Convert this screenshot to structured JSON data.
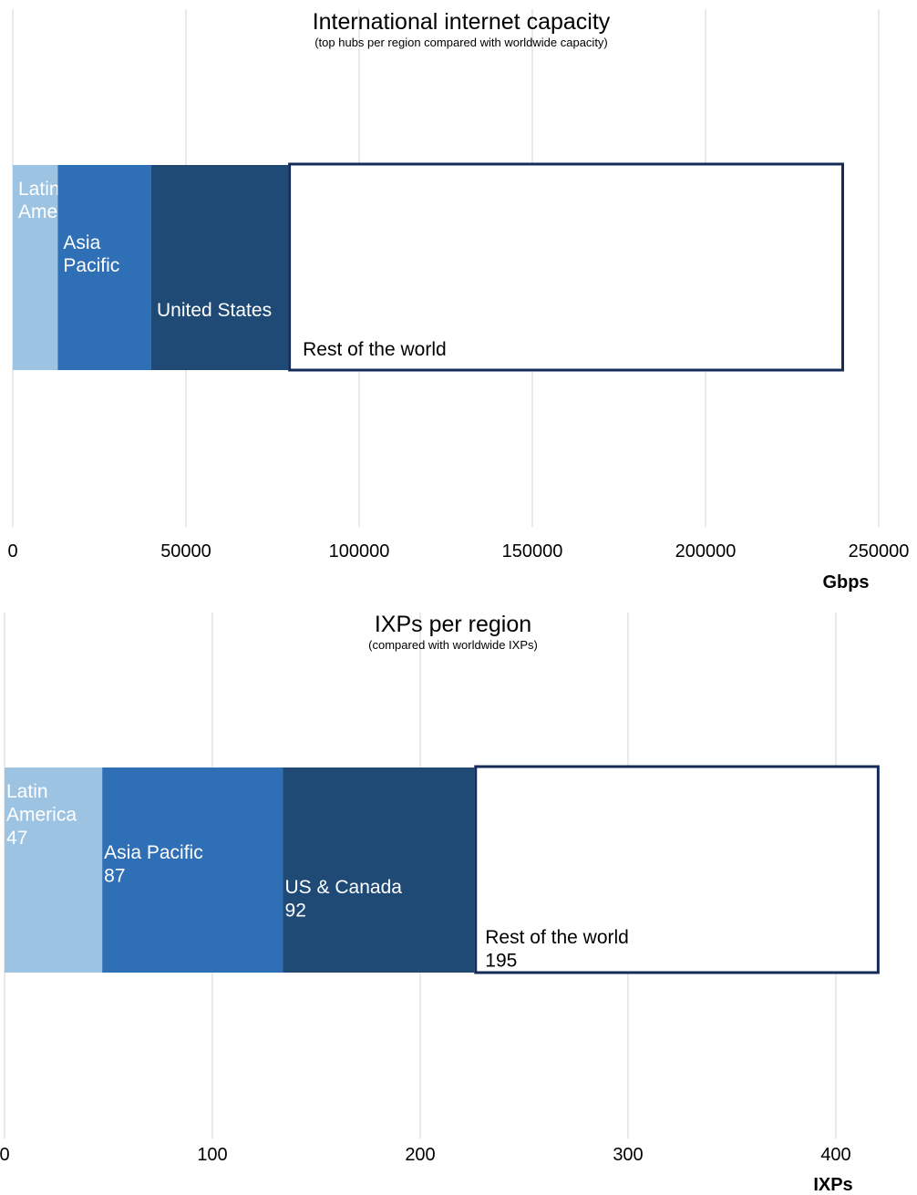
{
  "charts": [
    {
      "chart_data": {
        "type": "bar",
        "orientation": "horizontal",
        "stacked": true,
        "title": "International internet capacity",
        "subtitle": "(top hubs per region compared with worldwide capacity)",
        "xlabel": "Gbps",
        "xlim": [
          0,
          250000
        ],
        "xticks": [
          "0",
          "50000",
          "100000",
          "150000",
          "200000",
          "250000"
        ],
        "grid": true,
        "series": [
          {
            "label_lines": [
              "Latin",
              "America"
            ],
            "value": 13000,
            "color": "#9dc3e2",
            "text_color": "#ffffff",
            "outline": false
          },
          {
            "label_lines": [
              "Asia",
              "Pacific"
            ],
            "value": 27000,
            "color": "#2f6fb5",
            "text_color": "#ffffff",
            "outline": false
          },
          {
            "label_lines": [
              "United States"
            ],
            "value": 39500,
            "color": "#1f4a75",
            "text_color": "#ffffff",
            "outline": false
          },
          {
            "label_lines": [
              "Rest of the world"
            ],
            "value": 160500,
            "color": "#ffffff",
            "text_color": "#000000",
            "outline": true
          }
        ]
      }
    },
    {
      "chart_data": {
        "type": "bar",
        "orientation": "horizontal",
        "stacked": true,
        "title": "IXPs per region",
        "subtitle": "(compared with worldwide IXPs)",
        "xlabel": "IXPs",
        "xlim": [
          0,
          400
        ],
        "xticks": [
          "0",
          "100",
          "200",
          "300",
          "400"
        ],
        "grid": true,
        "series": [
          {
            "label_lines": [
              "Latin",
              "America",
              "47"
            ],
            "value": 47,
            "color": "#9dc3e2",
            "text_color": "#ffffff",
            "outline": false
          },
          {
            "label_lines": [
              "Asia Pacific",
              "87"
            ],
            "value": 87,
            "color": "#2f6fb5",
            "text_color": "#ffffff",
            "outline": false
          },
          {
            "label_lines": [
              "US & Canada",
              "92"
            ],
            "value": 92,
            "color": "#1f4a75",
            "text_color": "#ffffff",
            "outline": false
          },
          {
            "label_lines": [
              "Rest of the world",
              "195"
            ],
            "value": 195,
            "color": "#ffffff",
            "text_color": "#000000",
            "outline": true
          }
        ]
      }
    }
  ]
}
